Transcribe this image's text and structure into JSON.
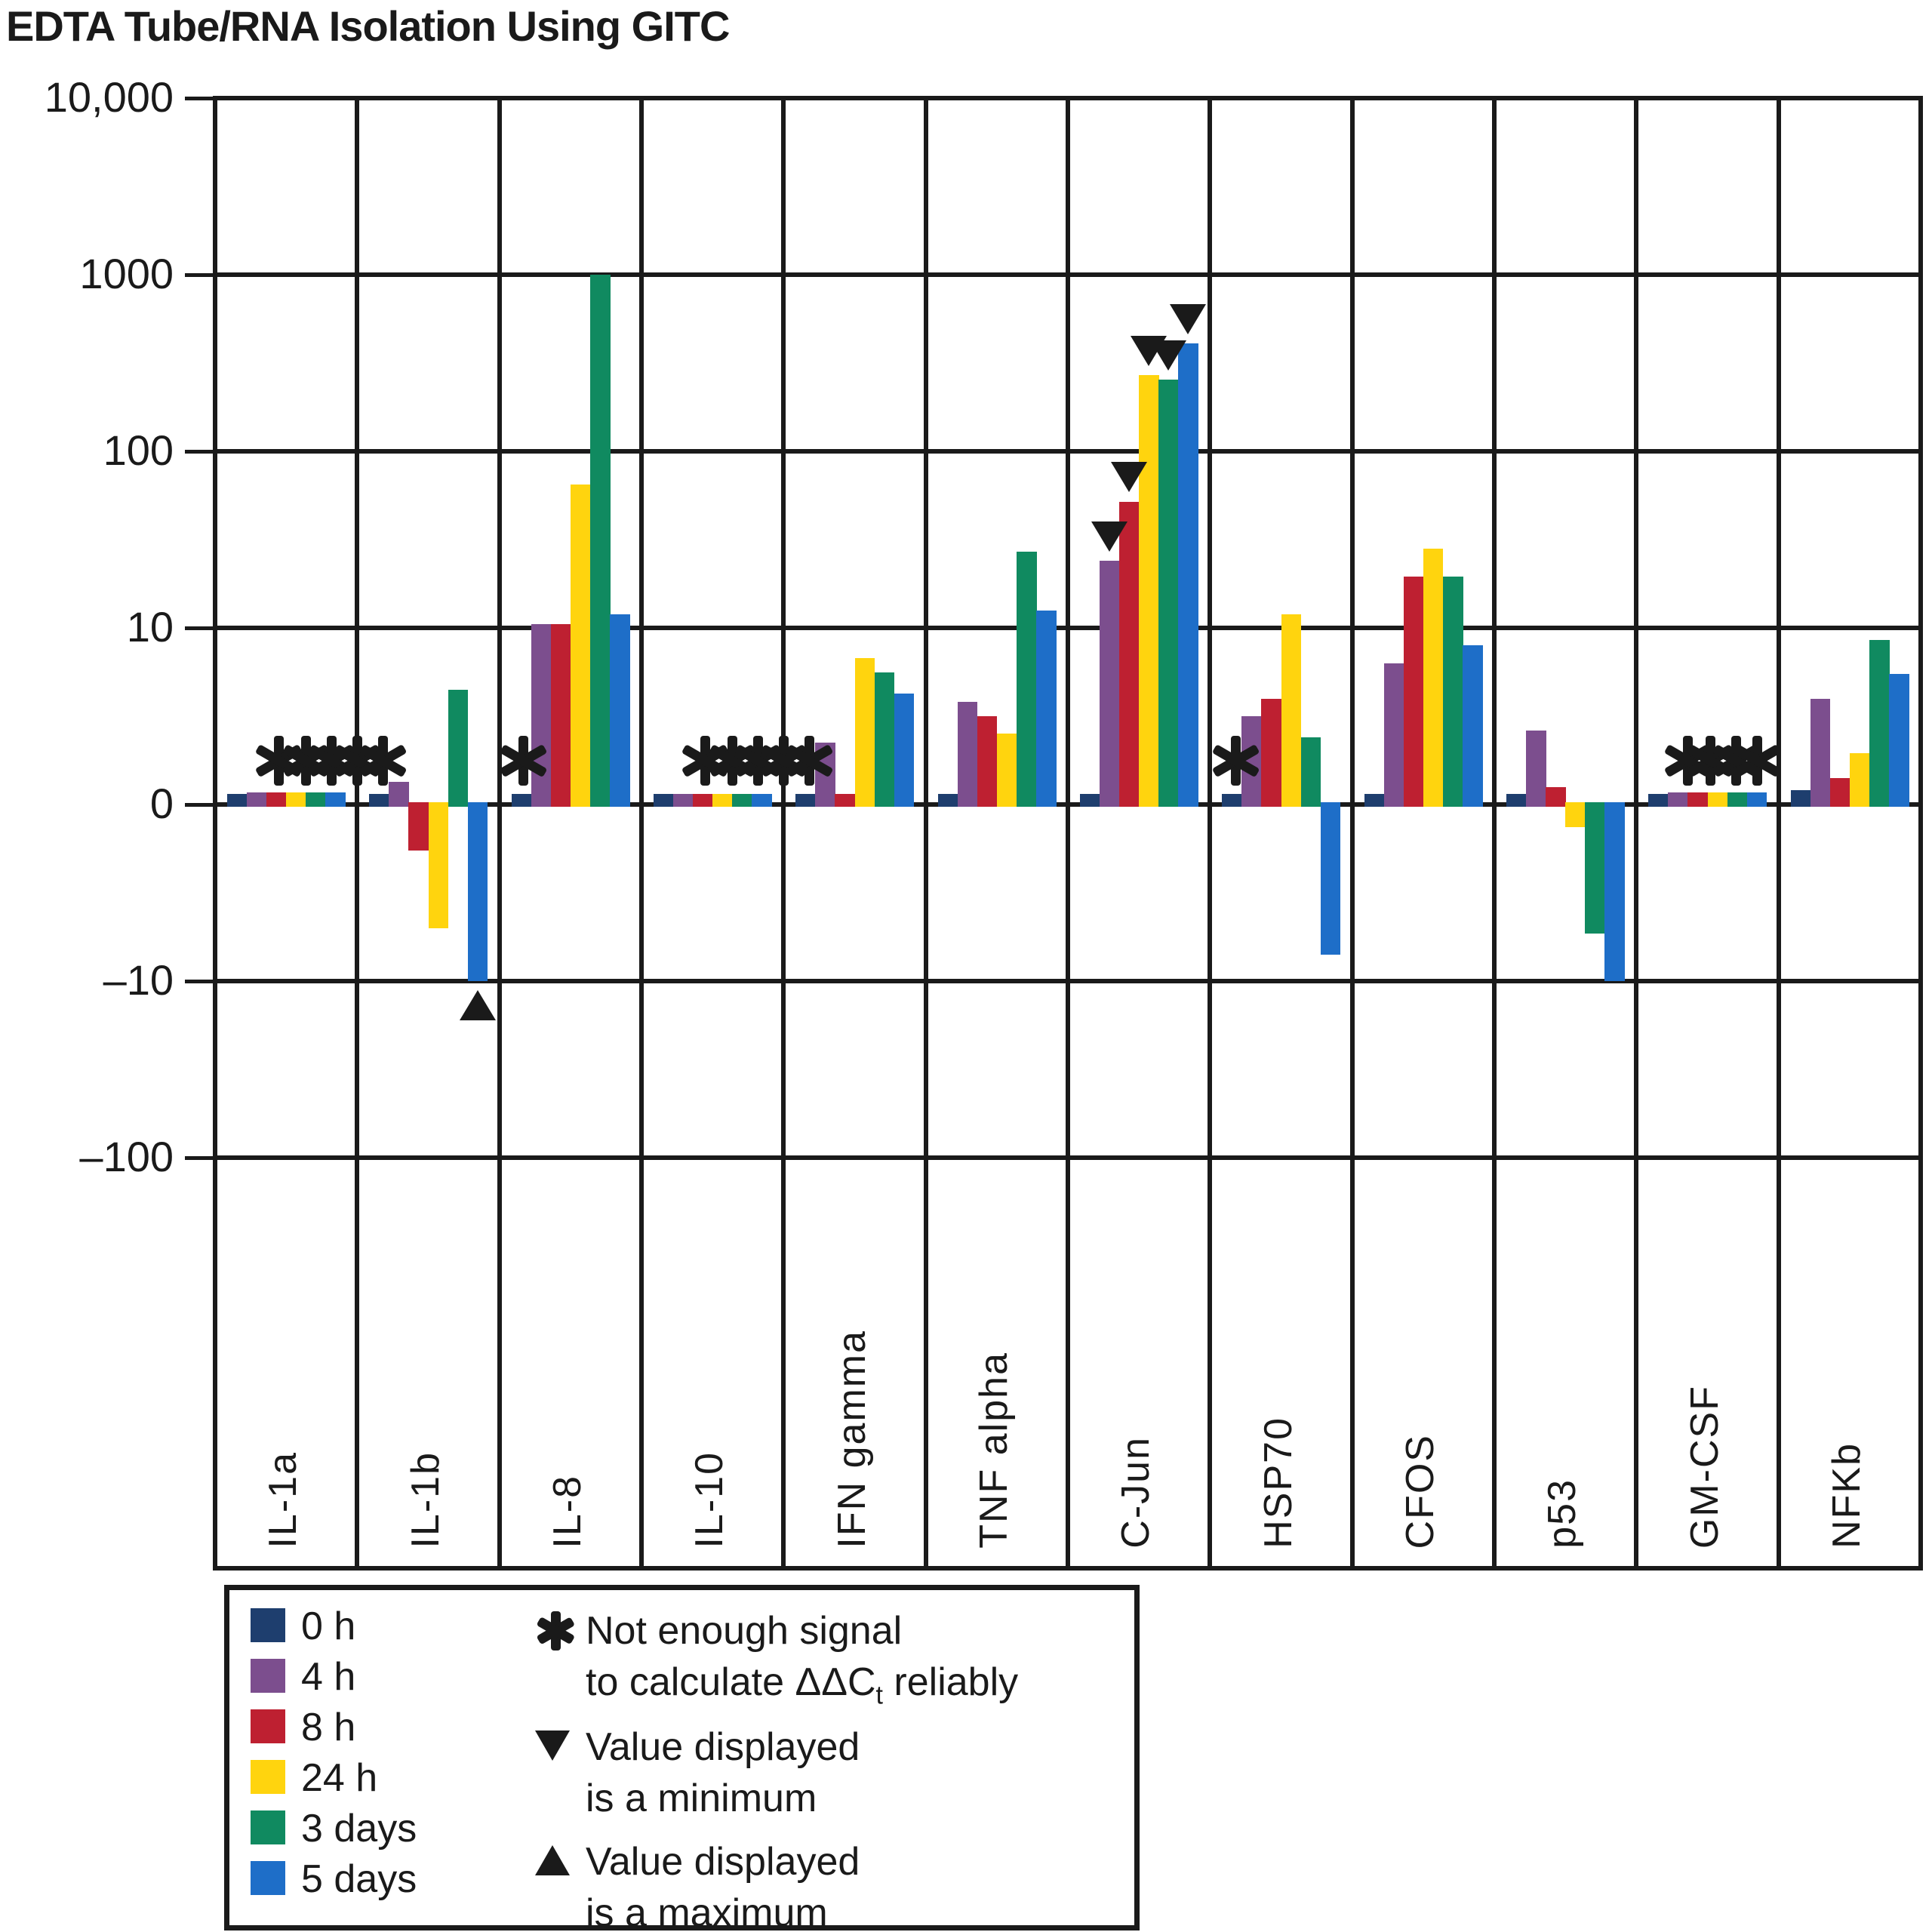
{
  "chart_data": {
    "type": "bar",
    "title": "EDTA Tube/RNA Isolation Using GITC",
    "scale": "symlog",
    "linear_region": [
      -10,
      10
    ],
    "ylim": [
      -1000,
      10000
    ],
    "grid": true,
    "ytick_labels": [
      "10,000",
      "1000",
      "100",
      "10",
      "0",
      "–10",
      "–100"
    ],
    "ytick_values": [
      10000,
      1000,
      100,
      10,
      0,
      -10,
      -100
    ],
    "categories": [
      "IL-1a",
      "IL-1b",
      "IL-8",
      "IL-10",
      "IFN gamma",
      "TNF alpha",
      "C-Jun",
      "HSP70",
      "CFOS",
      "p53",
      "GM-CSF",
      "NFKb"
    ],
    "series": [
      {
        "name": "0 h",
        "color": "#1E3E6E",
        "values": [
          0.6,
          0.6,
          0.6,
          0.6,
          0.6,
          0.6,
          0.6,
          0.6,
          0.6,
          0.6,
          0.6,
          0.8
        ]
      },
      {
        "name": "4 h",
        "color": "#7C4E8E",
        "values": [
          0.7,
          1.3,
          10.5,
          0.6,
          3.5,
          5.8,
          24,
          5.0,
          8.0,
          4.2,
          0.7,
          6.0
        ]
      },
      {
        "name": "8 h",
        "color": "#BE2031",
        "values": [
          0.7,
          -2.6,
          10.5,
          0.6,
          0.6,
          5.0,
          52,
          6.0,
          19.5,
          1.0,
          0.7,
          1.5
        ]
      },
      {
        "name": "24 h",
        "color": "#FFD40E",
        "values": [
          0.7,
          -7.0,
          65,
          0.6,
          8.3,
          4.0,
          270,
          12,
          28,
          -1.3,
          0.7,
          2.9
        ]
      },
      {
        "name": "3 days",
        "color": "#108A60",
        "values": [
          0.7,
          6.5,
          1000,
          0.6,
          7.5,
          27,
          255,
          3.8,
          19.5,
          -7.3,
          0.7,
          9.3
        ]
      },
      {
        "name": "5 days",
        "color": "#1E6EC8",
        "values": [
          0.7,
          -10,
          12,
          0.6,
          6.3,
          12.5,
          410,
          -8.5,
          9.0,
          -10,
          0.7,
          7.4
        ]
      }
    ],
    "annotations": {
      "asterisks": [
        {
          "category": "IL-1a",
          "fractions": [
            0.45,
            0.64,
            0.82,
            1.0,
            1.18
          ]
        },
        {
          "category": "IL-8",
          "fractions": [
            0.17
          ]
        },
        {
          "category": "IL-10",
          "fractions": [
            0.45,
            0.64,
            0.82,
            1.0,
            1.18
          ]
        },
        {
          "category": "HSP70",
          "fractions": [
            0.18
          ]
        },
        {
          "category": "GM-CSF",
          "fractions": [
            0.36,
            0.52,
            0.7,
            0.85
          ]
        }
      ],
      "min_markers": [
        {
          "category": "C-Jun",
          "series": [
            1,
            2,
            3,
            4,
            5
          ]
        }
      ],
      "max_markers": [
        {
          "category": "IL-1b",
          "series": [
            5
          ]
        }
      ]
    }
  },
  "legend": {
    "items": [
      {
        "label": "0 h",
        "color": "#1E3E6E"
      },
      {
        "label": "4 h",
        "color": "#7C4E8E"
      },
      {
        "label": "8 h",
        "color": "#BE2031"
      },
      {
        "label": "24 h",
        "color": "#FFD40E"
      },
      {
        "label": "3 days",
        "color": "#108A60"
      },
      {
        "label": "5 days",
        "color": "#1E6EC8"
      }
    ],
    "notes": [
      {
        "symbol": "asterisk-icon",
        "line1": "Not enough signal",
        "line2_pre": "to calculate ΔΔC",
        "line2_sub": "t",
        "line2_post": " reliably"
      },
      {
        "symbol": "triangle-down-icon",
        "line1": "Value displayed",
        "line2_pre": "is a minimum",
        "line2_sub": "",
        "line2_post": ""
      },
      {
        "symbol": "triangle-up-icon",
        "line1": "Value displayed",
        "line2_pre": "is a maximum",
        "line2_sub": "",
        "line2_post": ""
      }
    ]
  }
}
